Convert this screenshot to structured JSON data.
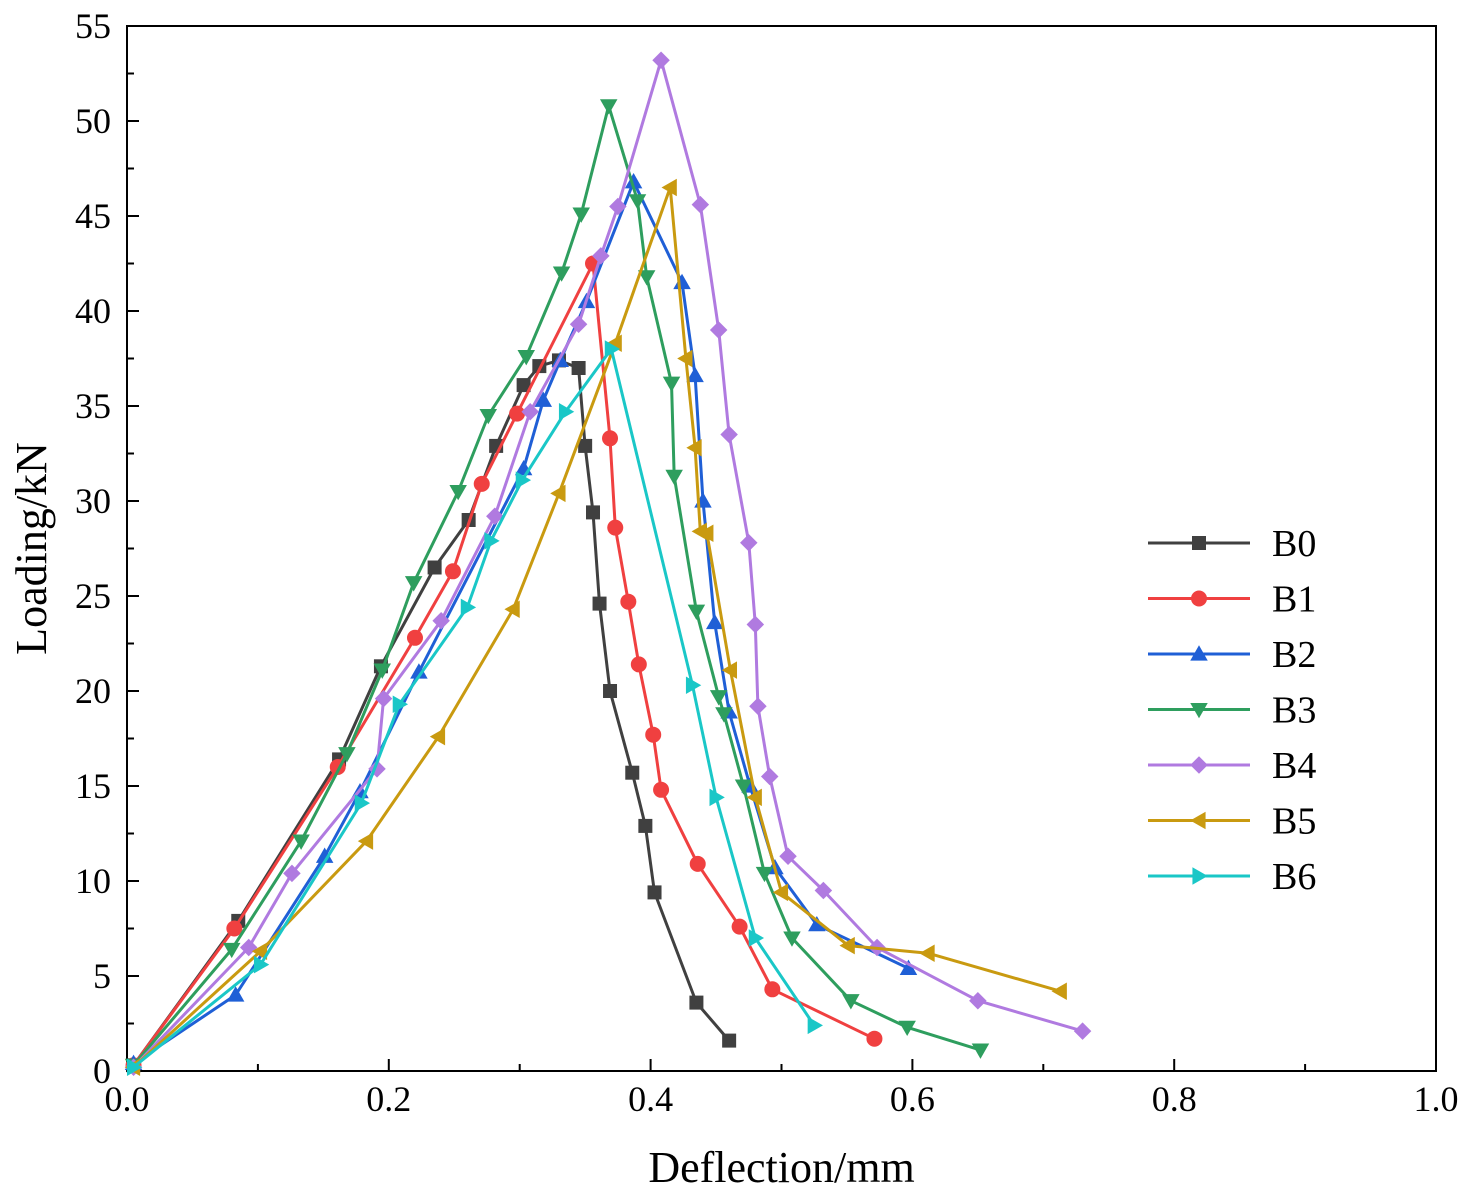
{
  "chart_data": {
    "type": "line",
    "title": "",
    "xlabel": "Deflection/mm",
    "ylabel": "Loading/kN",
    "xlim": [
      0,
      1.0
    ],
    "ylim": [
      0,
      55
    ],
    "xticks": [
      0.0,
      0.2,
      0.4,
      0.6,
      0.8,
      1.0
    ],
    "xtick_labels": [
      "0.0",
      "0.2",
      "0.4",
      "0.6",
      "0.8",
      "1.0"
    ],
    "yticks": [
      0,
      5,
      10,
      15,
      20,
      25,
      30,
      35,
      40,
      45,
      50,
      55
    ],
    "ytick_labels": [
      "0",
      "5",
      "10",
      "15",
      "20",
      "25",
      "30",
      "35",
      "40",
      "45",
      "50",
      "55"
    ],
    "grid": false,
    "legend_position": "right",
    "series": [
      {
        "name": "B0",
        "color": "#404040",
        "marker": "square",
        "x": [
          0.005,
          0.085,
          0.162,
          0.194,
          0.235,
          0.261,
          0.282,
          0.303,
          0.315,
          0.33,
          0.345,
          0.35,
          0.356,
          0.361,
          0.369,
          0.386,
          0.396,
          0.403,
          0.435,
          0.46
        ],
        "y": [
          0.3,
          7.9,
          16.4,
          21.3,
          26.5,
          29.0,
          32.9,
          36.1,
          37.1,
          37.4,
          37.0,
          32.9,
          29.4,
          24.6,
          20.0,
          15.7,
          12.9,
          9.4,
          3.6,
          1.6
        ]
      },
      {
        "name": "B1",
        "color": "#f04040",
        "marker": "circle",
        "x": [
          0.005,
          0.082,
          0.161,
          0.22,
          0.249,
          0.271,
          0.298,
          0.356,
          0.369,
          0.373,
          0.383,
          0.391,
          0.402,
          0.408,
          0.436,
          0.468,
          0.493,
          0.571
        ],
        "y": [
          0.3,
          7.5,
          16.0,
          22.8,
          26.3,
          30.9,
          34.6,
          42.5,
          33.3,
          28.6,
          24.7,
          21.4,
          17.7,
          14.8,
          10.9,
          7.6,
          4.3,
          1.7
        ]
      },
      {
        "name": "B2",
        "color": "#1f5fd6",
        "marker": "triangle-up",
        "x": [
          0.005,
          0.083,
          0.151,
          0.178,
          0.223,
          0.303,
          0.318,
          0.331,
          0.351,
          0.387,
          0.424,
          0.434,
          0.44,
          0.449,
          0.46,
          0.476,
          0.495,
          0.527,
          0.597
        ],
        "y": [
          0.4,
          4.0,
          11.3,
          14.7,
          21.0,
          31.7,
          35.3,
          37.4,
          40.5,
          46.8,
          41.5,
          36.6,
          30.0,
          23.6,
          18.9,
          15.0,
          10.7,
          7.7,
          5.4
        ]
      },
      {
        "name": "B3",
        "color": "#2e9e5e",
        "marker": "triangle-down",
        "x": [
          0.005,
          0.08,
          0.133,
          0.168,
          0.195,
          0.219,
          0.253,
          0.276,
          0.305,
          0.332,
          0.347,
          0.368,
          0.39,
          0.397,
          0.416,
          0.418,
          0.435,
          0.452,
          0.456,
          0.471,
          0.487,
          0.508,
          0.553,
          0.596,
          0.652
        ],
        "y": [
          0.3,
          6.4,
          12.1,
          16.7,
          21.1,
          25.7,
          30.5,
          34.5,
          37.6,
          42.0,
          45.1,
          50.8,
          45.8,
          41.8,
          36.2,
          31.3,
          24.2,
          19.7,
          18.8,
          15.0,
          10.4,
          7.0,
          3.7,
          2.3,
          1.1
        ]
      },
      {
        "name": "B4",
        "color": "#b07ae0",
        "marker": "diamond",
        "x": [
          0.005,
          0.093,
          0.126,
          0.191,
          0.196,
          0.24,
          0.281,
          0.308,
          0.345,
          0.362,
          0.375,
          0.408,
          0.438,
          0.452,
          0.46,
          0.475,
          0.48,
          0.482,
          0.491,
          0.505,
          0.532,
          0.573,
          0.65,
          0.73
        ],
        "y": [
          0.2,
          6.5,
          10.4,
          15.9,
          19.6,
          23.7,
          29.2,
          34.7,
          39.3,
          42.9,
          45.5,
          53.2,
          45.6,
          39.0,
          33.5,
          27.8,
          23.5,
          19.2,
          15.5,
          11.3,
          9.5,
          6.5,
          3.7,
          2.1
        ]
      },
      {
        "name": "B5",
        "color": "#c99a10",
        "marker": "triangle-left",
        "x": [
          0.005,
          0.102,
          0.183,
          0.238,
          0.295,
          0.33,
          0.373,
          0.415,
          0.427,
          0.434,
          0.438,
          0.443,
          0.461,
          0.48,
          0.5,
          0.551,
          0.612,
          0.713
        ],
        "y": [
          0.2,
          6.3,
          12.1,
          17.6,
          24.3,
          30.4,
          38.3,
          46.5,
          37.5,
          32.8,
          28.4,
          28.3,
          21.1,
          14.4,
          9.4,
          6.6,
          6.2,
          4.2
        ]
      },
      {
        "name": "B6",
        "color": "#1ac7c7",
        "marker": "triangle-right",
        "x": [
          0.005,
          0.102,
          0.179,
          0.208,
          0.26,
          0.278,
          0.302,
          0.335,
          0.37,
          0.432,
          0.45,
          0.48,
          0.525
        ],
        "y": [
          0.2,
          5.6,
          14.1,
          19.3,
          24.4,
          27.9,
          31.1,
          34.7,
          38.0,
          20.3,
          14.4,
          7.0,
          2.4
        ]
      }
    ]
  }
}
